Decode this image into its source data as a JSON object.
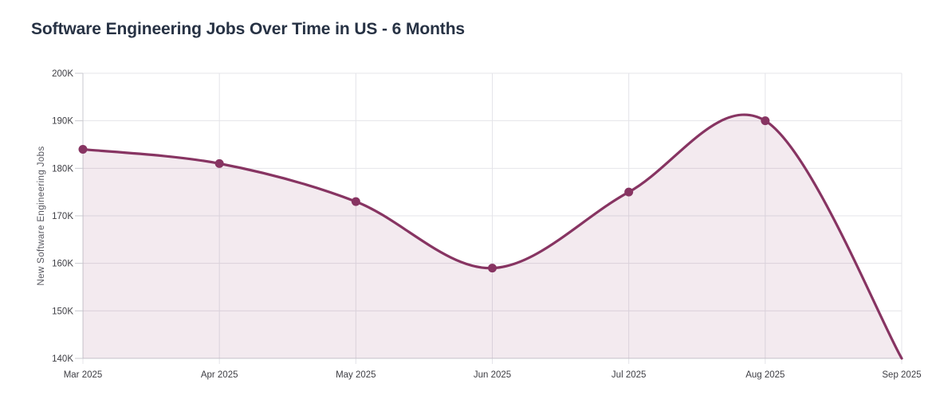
{
  "page": {
    "title": "Software Engineering Jobs Over Time in US - 6 Months"
  },
  "chart_data": {
    "type": "area",
    "title": "Software Engineering Jobs Over Time in US - 6 Months",
    "xlabel": "",
    "ylabel": "New Software Engineering Jobs",
    "categories": [
      "Mar 2025",
      "Apr 2025",
      "May 2025",
      "Jun 2025",
      "Jul 2025",
      "Aug 2025",
      "Sep 2025"
    ],
    "series": [
      {
        "name": "New Software Engineering Jobs",
        "values": [
          184000,
          181000,
          173000,
          159000,
          175000,
          190000,
          140000
        ]
      }
    ],
    "ylim": [
      140000,
      200000
    ],
    "y_ticks": [
      {
        "value": 140000,
        "label": "140K"
      },
      {
        "value": 150000,
        "label": "150K"
      },
      {
        "value": 160000,
        "label": "160K"
      },
      {
        "value": 170000,
        "label": "170K"
      },
      {
        "value": 180000,
        "label": "180K"
      },
      {
        "value": 190000,
        "label": "190K"
      },
      {
        "value": 200000,
        "label": "200K"
      }
    ],
    "grid": true,
    "legend": "none",
    "line_style": "smooth",
    "markers": "all-but-last",
    "colors": {
      "line": "#873462",
      "marker": "#873462",
      "fill": "#873462",
      "fill_opacity": 0.1,
      "gridline": "#e4e4e9",
      "axis_line": "#c9c9cf",
      "tick_label": "#3e3e44",
      "axis_title": "#56565e",
      "title": "#273244"
    }
  }
}
